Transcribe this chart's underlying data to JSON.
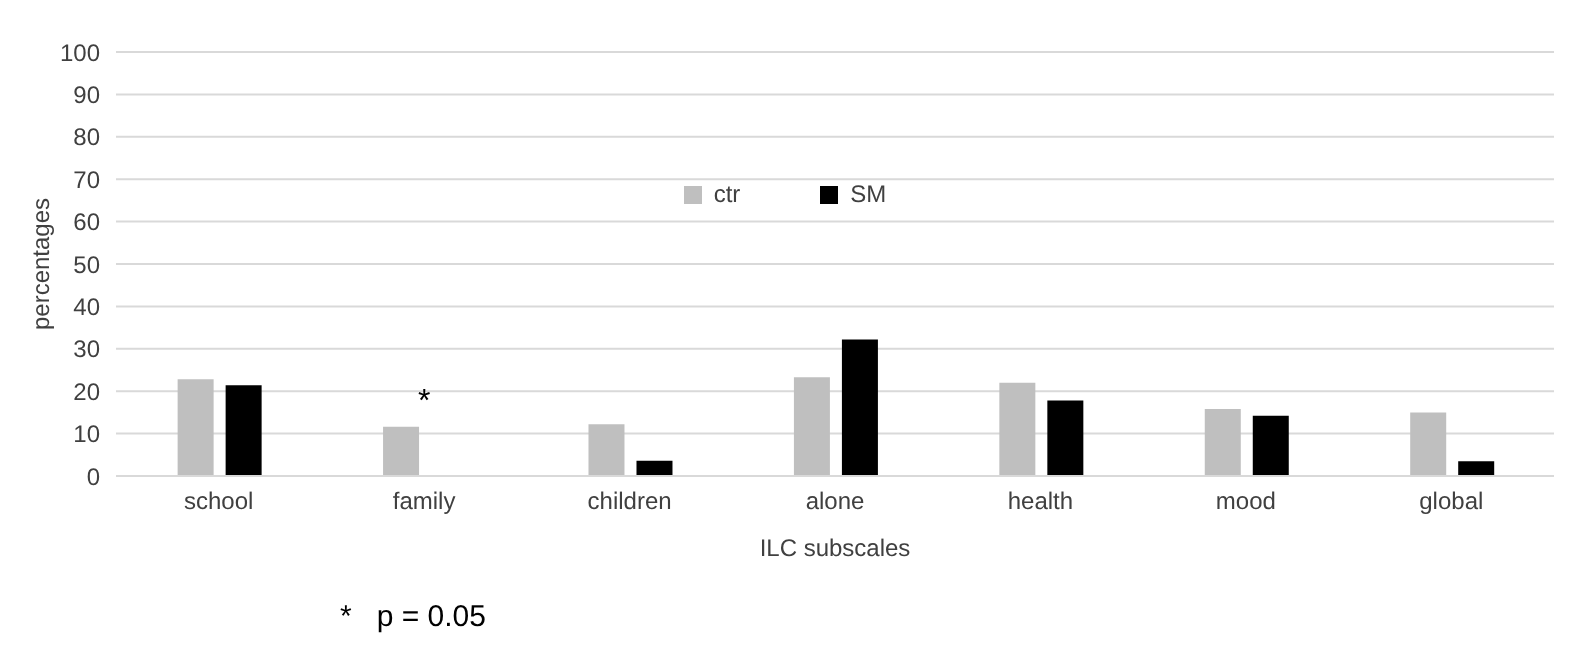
{
  "chart_data": {
    "type": "bar",
    "xlabel": "ILC subscales",
    "ylabel": "percentages",
    "categories": [
      "school",
      "family",
      "children",
      "alone",
      "health",
      "mood",
      "global"
    ],
    "series": [
      {
        "name": "ctr",
        "color": "#bfbfbf",
        "values": [
          22.8,
          11.6,
          12.2,
          23.3,
          22,
          15.8,
          15
        ]
      },
      {
        "name": "SM",
        "color": "#000000",
        "values": [
          21.4,
          0,
          3.6,
          32.2,
          17.8,
          14.2,
          3.5
        ]
      }
    ],
    "ylim": [
      0,
      100
    ],
    "yticks": [
      0,
      10,
      20,
      30,
      40,
      50,
      60,
      70,
      80,
      90,
      100
    ],
    "grid": "y",
    "legend": "top",
    "annotations": [
      {
        "text": "*",
        "x": "family",
        "y": 11.6
      },
      "*   p = 0.05"
    ]
  }
}
